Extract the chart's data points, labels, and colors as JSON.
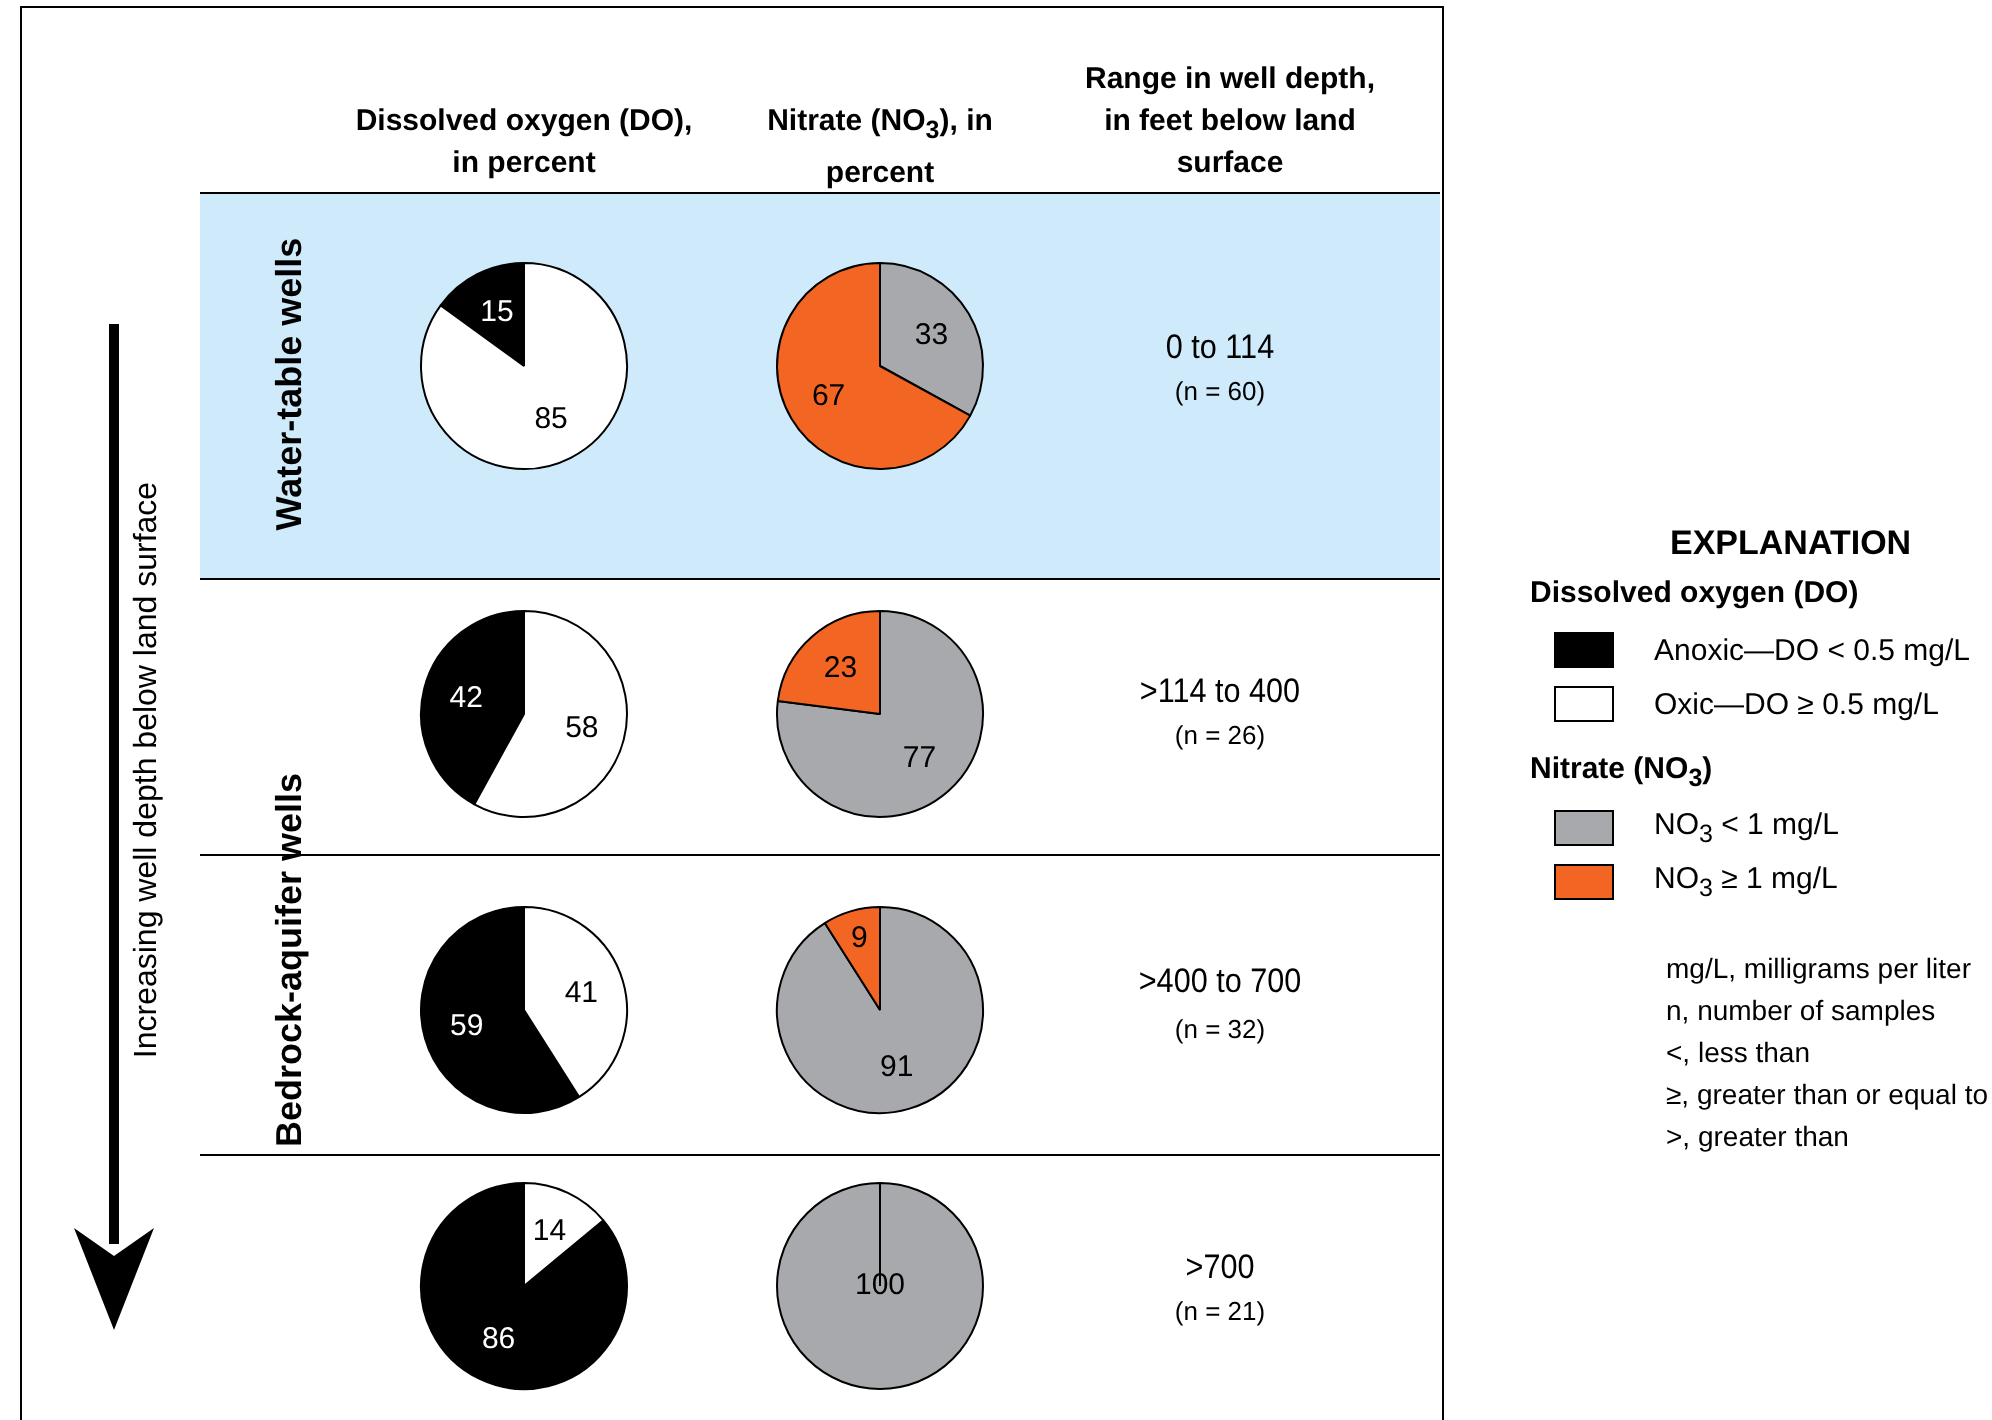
{
  "chart_data": [
    {
      "type": "pie",
      "categories": [
        "Anoxic—DO < 0.5 mg/L",
        "Oxic—DO ≥ 0.5 mg/L"
      ],
      "values": [
        15,
        85
      ],
      "colors": [
        "#000000",
        "#ffffff"
      ],
      "data_labels": true,
      "legend": "right",
      "legend_title": "Dissolved oxygen (DO)"
    },
    {
      "type": "pie",
      "categories": [
        "NO$_{3}$ < 1 mg/L",
        "NO$_{3}$ ≥ 1 mg/L"
      ],
      "values": [
        33,
        67
      ],
      "colors": [
        "#a7a9ac",
        "#f26522"
      ],
      "data_labels": true,
      "legend": "right",
      "legend_title": "Nitrate (NO$_{3}$)"
    },
    {
      "type": "pie",
      "categories": [
        null,
        null
      ],
      "values": [
        42,
        58
      ],
      "colors": [
        "#000000",
        "#ffffff"
      ],
      "data_labels": true
    },
    {
      "type": "pie",
      "categories": [
        null,
        null
      ],
      "values": [
        77,
        23
      ],
      "colors": [
        "#a7a9ac",
        "#f26522"
      ],
      "data_labels": true
    },
    {
      "type": "pie",
      "categories": [
        null,
        null
      ],
      "values": [
        59,
        41
      ],
      "colors": [
        "#000000",
        "#ffffff"
      ],
      "data_labels": true
    },
    {
      "type": "pie",
      "categories": [
        null,
        null
      ],
      "values": [
        91,
        9
      ],
      "colors": [
        "#a7a9ac",
        "#f26522"
      ],
      "data_labels": true
    },
    {
      "type": "pie",
      "categories": [
        null,
        null
      ],
      "values": [
        86,
        14
      ],
      "colors": [
        "#000000",
        "#ffffff"
      ],
      "data_labels": true
    },
    {
      "type": "pie",
      "categories": [
        null,
        null
      ],
      "values": [
        100,
        0
      ],
      "colors": [
        "#a7a9ac",
        "#f26522"
      ],
      "data_labels": true
    },
    {
      "type": "other",
      "annotations": [
        "Dissolved oxygen (DO), in percent",
        "Nitrate (NO$_{3}$), in percent",
        "Range in well depth, in feet below land surface",
        "Water-table wells",
        "Bedrock-aquifer wells",
        "Increasing well depth below land surface",
        "0 to 114",
        "(n = 60)",
        ">114 to 400",
        "(n = 26)",
        ">400 to 700",
        "(n = 32)",
        ">700",
        "(n = 21)",
        "EXPLANATION",
        "mg/L, milligrams per liter",
        "n, number of samples",
        "<, less than",
        "≥, greater than or equal to",
        ">, greater than"
      ]
    }
  ]
}
